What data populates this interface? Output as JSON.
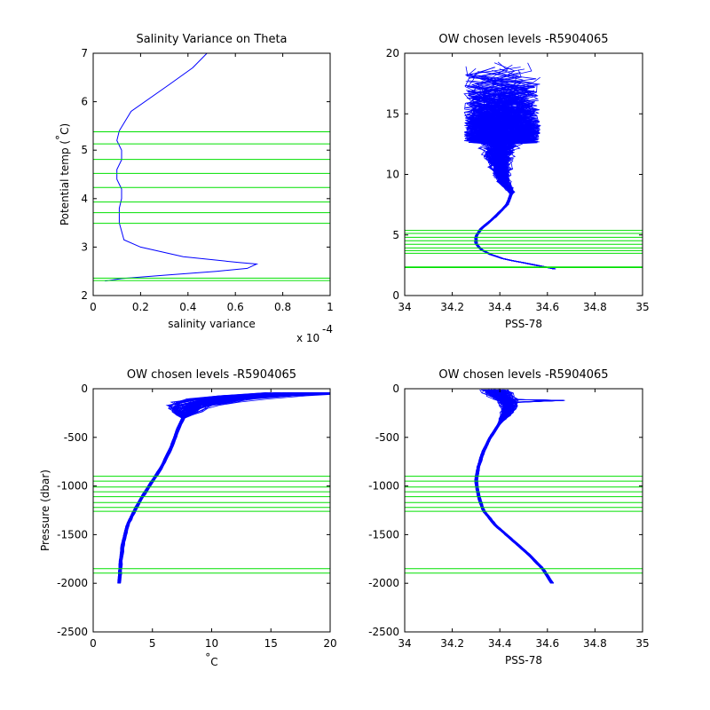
{
  "chart_data": [
    {
      "type": "line",
      "title": "Salinity Variance on Theta",
      "xlabel": "salinity variance",
      "ylabel": "Potential temp (°C)",
      "ylabel_parts": [
        "Potential temp (",
        "°",
        "C)"
      ],
      "xlim": [
        0,
        1
      ],
      "ylim": [
        2,
        7
      ],
      "xticks": [
        0,
        0.2,
        0.4,
        0.6,
        0.8,
        1
      ],
      "xtick_labels": [
        "0",
        "0.2",
        "0.4",
        "0.6",
        "0.8",
        "1"
      ],
      "yticks": [
        2,
        3,
        4,
        5,
        6,
        7
      ],
      "ytick_labels": [
        "2",
        "3",
        "4",
        "5",
        "6",
        "7"
      ],
      "x_multiplier": "x 10",
      "x_multiplier_exponent": "-4",
      "grid": false,
      "series": [
        {
          "color": "#0000ff",
          "x": [
            0.48,
            0.42,
            0.32,
            0.16,
            0.11,
            0.1,
            0.12,
            0.12,
            0.1,
            0.1,
            0.12,
            0.12,
            0.11,
            0.11,
            0.13,
            0.2,
            0.38,
            0.62,
            0.69,
            0.65,
            0.52,
            0.3,
            0.12,
            0.05
          ],
          "y": [
            7.0,
            6.7,
            6.35,
            5.8,
            5.4,
            5.2,
            5.0,
            4.8,
            4.6,
            4.4,
            4.2,
            4.0,
            3.8,
            3.5,
            3.15,
            3.0,
            2.8,
            2.68,
            2.65,
            2.56,
            2.5,
            2.42,
            2.35,
            2.3
          ]
        }
      ],
      "hlines": {
        "color": "#00e000",
        "y": [
          5.38,
          5.13,
          4.81,
          4.52,
          4.23,
          3.93,
          3.71,
          3.49,
          2.36,
          2.31
        ]
      }
    },
    {
      "type": "line",
      "title": "OW chosen levels -R5904065",
      "xlabel": "PSS-78",
      "ylabel": "",
      "xlim": [
        34,
        35
      ],
      "ylim": [
        0,
        20
      ],
      "xticks": [
        34,
        34.2,
        34.4,
        34.6,
        34.8,
        35
      ],
      "xtick_labels": [
        "34",
        "34.2",
        "34.4",
        "34.6",
        "34.8",
        "35"
      ],
      "yticks": [
        0,
        5,
        10,
        15,
        20
      ],
      "ytick_labels": [
        "0",
        "5",
        "10",
        "15",
        "20"
      ],
      "grid": false,
      "series": [
        {
          "color": "#0000ff",
          "mean_profile": {
            "x": [
              34.63,
              34.58,
              34.5,
              34.42,
              34.36,
              34.32,
              34.3,
              34.3,
              34.32,
              34.35,
              34.38,
              34.43,
              34.45,
              34.42,
              34.4,
              34.39,
              34.4
            ],
            "y": [
              2.2,
              2.4,
              2.7,
              3.0,
              3.4,
              3.8,
              4.3,
              4.9,
              5.5,
              6.0,
              6.5,
              7.5,
              8.5,
              9.3,
              10.5,
              11.5,
              12.5
            ]
          },
          "spread_above_theta": 8.5,
          "x_range": [
            34.25,
            34.68
          ],
          "y_top": 19.4
        }
      ],
      "hlines": {
        "color": "#00e000",
        "y": [
          5.38,
          5.13,
          4.81,
          4.52,
          4.23,
          3.93,
          3.71,
          3.49,
          2.36,
          2.31
        ]
      }
    },
    {
      "type": "line",
      "title": "OW chosen levels -R5904065",
      "xlabel": "°C",
      "xlabel_parts": [
        "°",
        "C"
      ],
      "ylabel": "Pressure (dbar)",
      "xlim": [
        0,
        20
      ],
      "ylim": [
        -2500,
        0
      ],
      "xticks": [
        0,
        5,
        10,
        15,
        20
      ],
      "xtick_labels": [
        "0",
        "5",
        "10",
        "15",
        "20"
      ],
      "yticks": [
        -2500,
        -2000,
        -1500,
        -1000,
        -500,
        0
      ],
      "ytick_labels": [
        "-2500",
        "-2000",
        "-1500",
        "-1000",
        "-500",
        "0"
      ],
      "grid": false,
      "series": [
        {
          "color": "#0000ff",
          "mean_profile": {
            "x": [
              2.2,
              2.3,
              2.5,
              2.9,
              3.5,
              4.2,
              5.0,
              5.8,
              6.6,
              7.2,
              7.6,
              8.0,
              8.8,
              11.0,
              14.5,
              17.5,
              19.0
            ],
            "y": [
              -2000,
              -1800,
              -1600,
              -1400,
              -1250,
              -1100,
              -950,
              -800,
              -600,
              -400,
              -300,
              -200,
              -150,
              -100,
              -70,
              -50,
              -40
            ]
          },
          "spread_above_pressure": -300
        }
      ],
      "hlines": {
        "color": "#00e000",
        "y": [
          -900,
          -950,
          -1010,
          -1060,
          -1110,
          -1170,
          -1220,
          -1260,
          -1850,
          -1895
        ]
      }
    },
    {
      "type": "line",
      "title": "OW chosen levels -R5904065",
      "xlabel": "PSS-78",
      "ylabel": "",
      "xlim": [
        34,
        35
      ],
      "ylim": [
        -2500,
        0
      ],
      "xticks": [
        34,
        34.2,
        34.4,
        34.6,
        34.8,
        35
      ],
      "xtick_labels": [
        "34",
        "34.2",
        "34.4",
        "34.6",
        "34.8",
        "35"
      ],
      "yticks": [
        -2500,
        -2000,
        -1500,
        -1000,
        -500,
        0
      ],
      "ytick_labels": [
        "-2500",
        "-2000",
        "-1500",
        "-1000",
        "-500",
        "0"
      ],
      "grid": false,
      "series": [
        {
          "color": "#0000ff",
          "mean_profile": {
            "x": [
              34.62,
              34.58,
              34.52,
              34.45,
              34.38,
              34.33,
              34.31,
              34.3,
              34.31,
              34.33,
              34.36,
              34.4,
              34.43,
              34.44,
              34.43,
              34.4,
              34.38
            ],
            "y": [
              -2000,
              -1850,
              -1700,
              -1550,
              -1400,
              -1250,
              -1100,
              -950,
              -800,
              -650,
              -500,
              -350,
              -250,
              -180,
              -120,
              -60,
              -10
            ]
          },
          "spread_above_pressure": -350,
          "spike_x": 34.68,
          "spike_y": -120
        }
      ],
      "hlines": {
        "color": "#00e000",
        "y": [
          -900,
          -950,
          -1010,
          -1060,
          -1110,
          -1170,
          -1220,
          -1260,
          -1850,
          -1895
        ]
      }
    }
  ]
}
